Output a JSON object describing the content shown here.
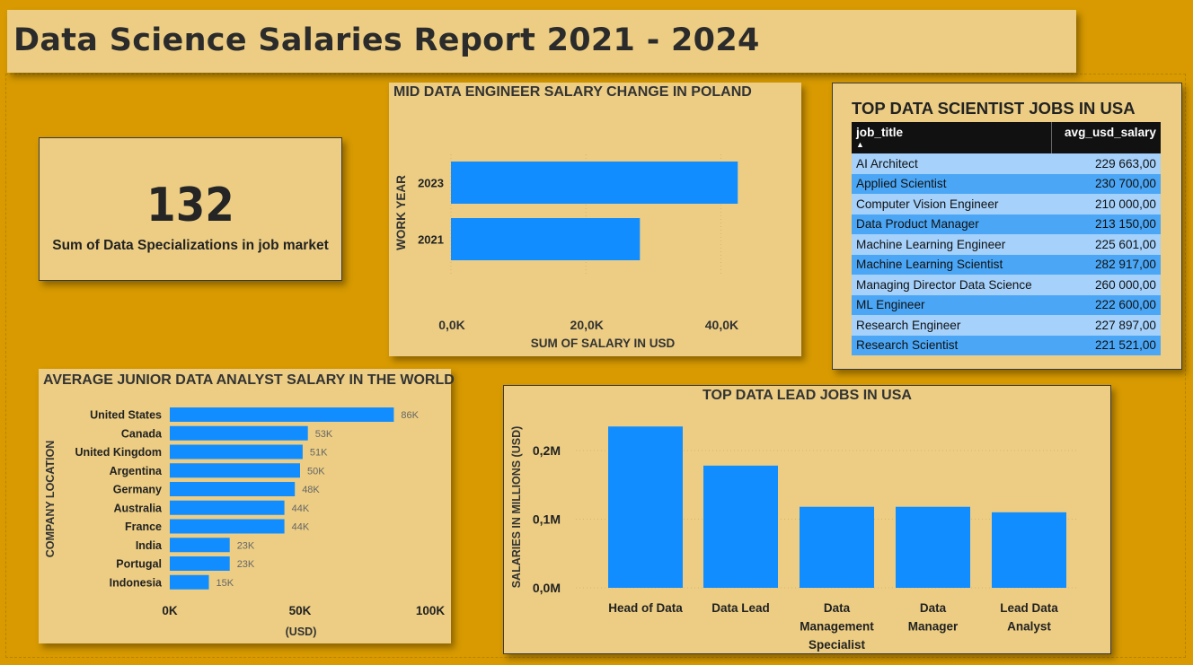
{
  "report_title": "Data Science Salaries Report 2021 - 2024",
  "kpi": {
    "value": "132",
    "label": "Sum of Data Specializations in job market"
  },
  "colors": {
    "bar": "#118DFF",
    "background": "#D89A00",
    "card": "#ECCD83"
  },
  "chart_data": [
    {
      "type": "bar",
      "orientation": "horizontal",
      "title": "MID DATA ENGINEER SALARY CHANGE IN POLAND",
      "xlabel": "SUM OF SALARY IN USD",
      "ylabel": "WORK YEAR",
      "categories": [
        "2023",
        "2021"
      ],
      "values": [
        42500,
        28000
      ],
      "xlim": [
        0,
        45000
      ],
      "ticks": [
        0,
        20000,
        40000
      ],
      "tick_labels": [
        "0,0K",
        "20,0K",
        "40,0K"
      ],
      "grid": true
    },
    {
      "type": "bar",
      "orientation": "horizontal",
      "title": "AVERAGE JUNIOR DATA ANALYST SALARY IN THE WORLD",
      "xlabel": "(USD)",
      "ylabel": "COMPANY LOCATION",
      "categories": [
        "United States",
        "Canada",
        "United Kingdom",
        "Argentina",
        "Germany",
        "Australia",
        "France",
        "India",
        "Portugal",
        "Indonesia"
      ],
      "values": [
        86000,
        53000,
        51000,
        50000,
        48000,
        44000,
        44000,
        23000,
        23000,
        15000
      ],
      "data_labels": [
        "86K",
        "53K",
        "51K",
        "50K",
        "48K",
        "44K",
        "44K",
        "23K",
        "23K",
        "15K"
      ],
      "xlim": [
        0,
        100000
      ],
      "ticks": [
        0,
        50000,
        100000
      ],
      "tick_labels": [
        "0K",
        "50K",
        "100K"
      ]
    },
    {
      "type": "bar",
      "orientation": "vertical",
      "title": "TOP DATA LEAD JOBS IN USA",
      "xlabel": "",
      "ylabel": "SALARIES IN MILLIONS (USD)",
      "categories": [
        "Head of Data",
        "Data Lead",
        "Data Management Specialist",
        "Data Manager",
        "Lead Data Analyst"
      ],
      "values": [
        235000,
        178000,
        118000,
        118000,
        110000
      ],
      "ylim": [
        0,
        270000
      ],
      "ticks": [
        0,
        100000,
        200000
      ],
      "tick_labels": [
        "0,0M",
        "0,1M",
        "0,2M"
      ],
      "grid": true
    },
    {
      "type": "table",
      "title": "TOP DATA SCIENTIST JOBS IN USA",
      "columns": [
        "job_title",
        "avg_usd_salary"
      ],
      "sort_indicator": "▲",
      "rows": [
        [
          "AI Architect",
          "229 663,00"
        ],
        [
          "Applied Scientist",
          "230 700,00"
        ],
        [
          "Computer Vision Engineer",
          "210 000,00"
        ],
        [
          "Data Product Manager",
          "213 150,00"
        ],
        [
          "Machine Learning Engineer",
          "225 601,00"
        ],
        [
          "Machine Learning Scientist",
          "282 917,00"
        ],
        [
          "Managing Director Data Science",
          "260 000,00"
        ],
        [
          "ML Engineer",
          "222 600,00"
        ],
        [
          "Research Engineer",
          "227 897,00"
        ],
        [
          "Research Scientist",
          "221 521,00"
        ]
      ]
    }
  ]
}
